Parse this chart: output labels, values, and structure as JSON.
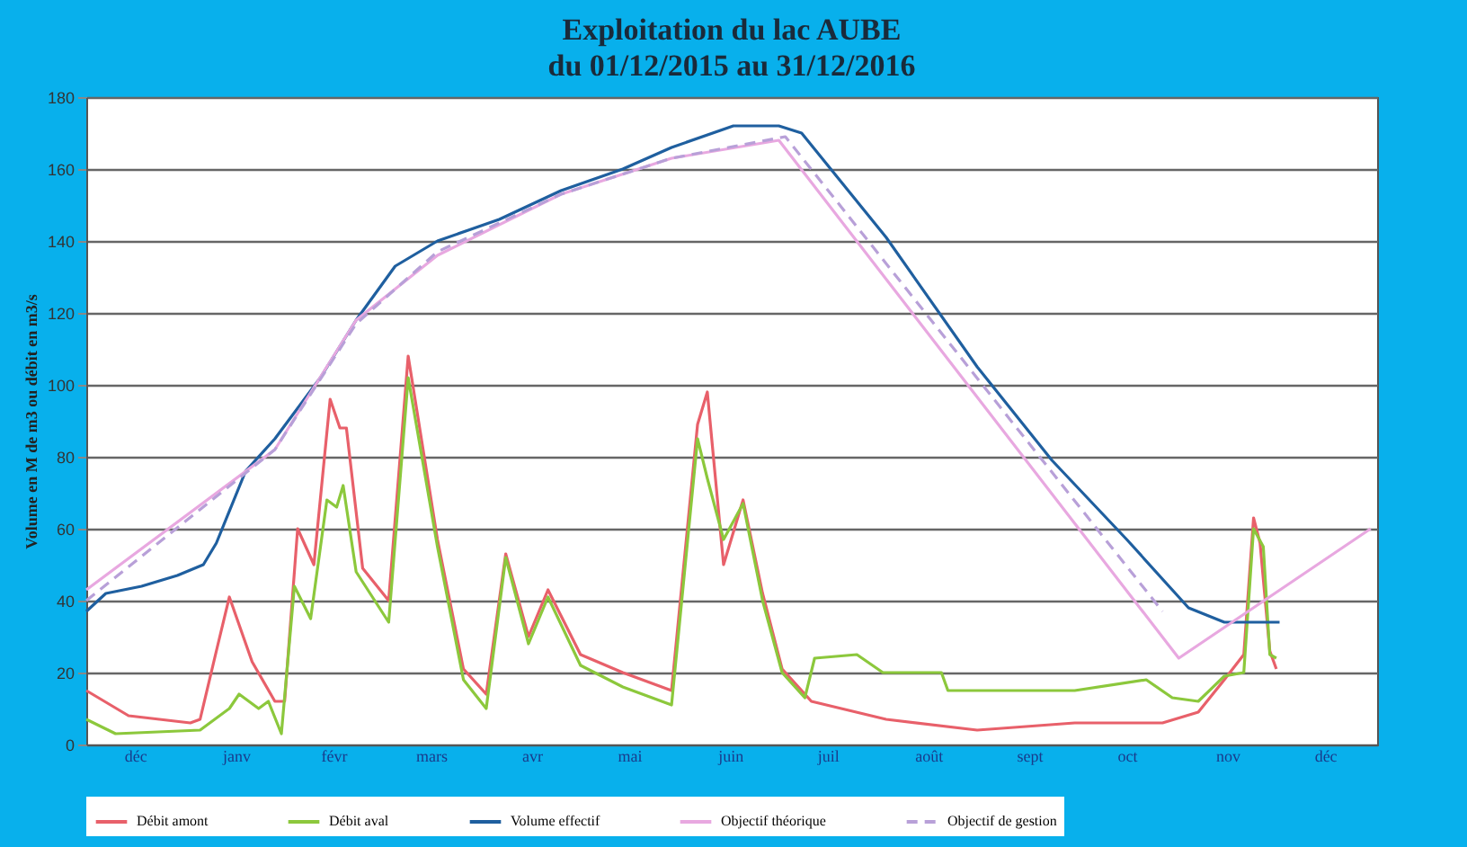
{
  "chart_data": {
    "type": "line",
    "title": "Exploitation du lac AUBE",
    "subtitle": "du 01/12/2015 au 31/12/2016",
    "ylabel": "Volume en M de m3 ou débit en m3/s",
    "xlim": [
      "2015-12-01",
      "2017-01-01"
    ],
    "xticks": [
      {
        "value": "2015-12-16",
        "label": "déc"
      },
      {
        "value": "2016-01-16",
        "label": "janv"
      },
      {
        "value": "2016-02-15",
        "label": "févr"
      },
      {
        "value": "2016-03-16",
        "label": "mars"
      },
      {
        "value": "2016-04-16",
        "label": "avr"
      },
      {
        "value": "2016-05-16",
        "label": "mai"
      },
      {
        "value": "2016-06-16",
        "label": "juin"
      },
      {
        "value": "2016-07-16",
        "label": "juil"
      },
      {
        "value": "2016-08-16",
        "label": "août"
      },
      {
        "value": "2016-09-16",
        "label": "sept"
      },
      {
        "value": "2016-10-16",
        "label": "oct"
      },
      {
        "value": "2016-11-16",
        "label": "nov"
      },
      {
        "value": "2016-12-16",
        "label": "déc"
      }
    ],
    "ylim": [
      0,
      180
    ],
    "yticks": [
      0,
      20,
      40,
      60,
      80,
      100,
      120,
      140,
      160,
      180
    ],
    "grid": "y",
    "legend": "bottom",
    "marker": "none",
    "series": [
      {
        "name": "Débit amont",
        "color": "#e8606a",
        "line_style": "solid",
        "x": [
          "2015-12-01",
          "2015-12-14",
          "2016-01-02",
          "2016-01-05",
          "2016-01-10",
          "2016-01-14",
          "2016-01-21",
          "2016-01-28",
          "2016-01-31",
          "2016-02-04",
          "2016-02-09",
          "2016-02-14",
          "2016-02-17",
          "2016-02-19",
          "2016-02-24",
          "2016-03-03",
          "2016-03-09",
          "2016-03-18",
          "2016-03-26",
          "2016-04-02",
          "2016-04-08",
          "2016-04-15",
          "2016-04-21",
          "2016-05-01",
          "2016-05-14",
          "2016-05-29",
          "2016-06-06",
          "2016-06-09",
          "2016-06-14",
          "2016-06-20",
          "2016-06-26",
          "2016-07-02",
          "2016-07-11",
          "2016-08-03",
          "2016-08-31",
          "2016-09-30",
          "2016-10-27",
          "2016-11-07",
          "2016-11-15",
          "2016-11-21",
          "2016-11-24",
          "2016-11-26",
          "2016-11-29",
          "2016-12-01"
        ],
        "values": [
          15,
          8,
          6,
          7,
          26,
          41,
          23,
          12,
          12,
          60,
          50,
          96,
          88,
          88,
          49,
          40,
          108,
          57,
          21,
          14,
          53,
          30,
          43,
          25,
          20,
          15,
          89,
          98,
          50,
          68,
          42,
          21,
          12,
          7,
          4,
          6,
          6,
          9,
          18,
          25,
          63,
          56,
          26,
          21
        ]
      },
      {
        "name": "Débit aval",
        "color": "#8cc83c",
        "line_style": "solid",
        "x": [
          "2015-12-01",
          "2015-12-10",
          "2016-01-05",
          "2016-01-14",
          "2016-01-17",
          "2016-01-23",
          "2016-01-26",
          "2016-01-30",
          "2016-02-03",
          "2016-02-08",
          "2016-02-13",
          "2016-02-16",
          "2016-02-18",
          "2016-02-22",
          "2016-03-03",
          "2016-03-09",
          "2016-03-18",
          "2016-03-26",
          "2016-04-02",
          "2016-04-08",
          "2016-04-15",
          "2016-04-21",
          "2016-05-01",
          "2016-05-14",
          "2016-05-29",
          "2016-06-06",
          "2016-06-09",
          "2016-06-14",
          "2016-06-20",
          "2016-06-26",
          "2016-07-02",
          "2016-07-09",
          "2016-07-12",
          "2016-07-25",
          "2016-08-02",
          "2016-08-20",
          "2016-08-22",
          "2016-09-30",
          "2016-10-22",
          "2016-10-30",
          "2016-11-07",
          "2016-11-15",
          "2016-11-21",
          "2016-11-24",
          "2016-11-27",
          "2016-11-29",
          "2016-12-01"
        ],
        "values": [
          7,
          3,
          4,
          10,
          14,
          10,
          12,
          3,
          44,
          35,
          68,
          66,
          72,
          48,
          34,
          102,
          55,
          18,
          10,
          52,
          28,
          41,
          22,
          16,
          11,
          85,
          74,
          57,
          67,
          40,
          20,
          13,
          24,
          25,
          20,
          20,
          15,
          15,
          18,
          13,
          12,
          19,
          20,
          60,
          55,
          25,
          24
        ]
      },
      {
        "name": "Volume effectif",
        "color": "#1f5f9f",
        "line_style": "solid",
        "x": [
          "2015-12-01",
          "2015-12-07",
          "2015-12-18",
          "2015-12-29",
          "2016-01-06",
          "2016-01-10",
          "2016-01-19",
          "2016-01-28",
          "2016-02-11",
          "2016-02-22",
          "2016-03-05",
          "2016-03-18",
          "2016-04-06",
          "2016-04-25",
          "2016-05-14",
          "2016-05-29",
          "2016-06-17",
          "2016-07-01",
          "2016-07-08",
          "2016-08-03",
          "2016-08-31",
          "2016-09-23",
          "2016-10-16",
          "2016-11-04",
          "2016-11-15",
          "2016-12-02"
        ],
        "values": [
          37,
          42,
          44,
          47,
          50,
          56,
          76,
          85,
          102,
          118,
          133,
          140,
          146,
          154,
          160,
          166,
          172,
          172,
          170,
          141,
          105,
          79,
          57,
          38,
          34,
          34
        ]
      },
      {
        "name": "Objectif théorique",
        "color": "#e8a8e0",
        "line_style": "solid",
        "x": [
          "2015-12-01",
          "2016-01-28",
          "2016-02-22",
          "2016-03-18",
          "2016-04-25",
          "2016-05-29",
          "2016-07-01",
          "2016-11-01",
          "2016-12-30"
        ],
        "values": [
          43,
          82,
          118,
          136,
          153,
          163,
          168,
          24,
          60
        ]
      },
      {
        "name": "Objectif de gestion",
        "color": "#b8a0d8",
        "line_style": "dashed",
        "x": [
          "2015-12-01",
          "2016-01-28",
          "2016-02-22",
          "2016-03-18",
          "2016-04-25",
          "2016-05-29",
          "2016-07-03",
          "2016-10-27"
        ],
        "values": [
          40,
          82,
          117,
          137,
          153,
          163,
          169,
          37
        ]
      }
    ]
  }
}
